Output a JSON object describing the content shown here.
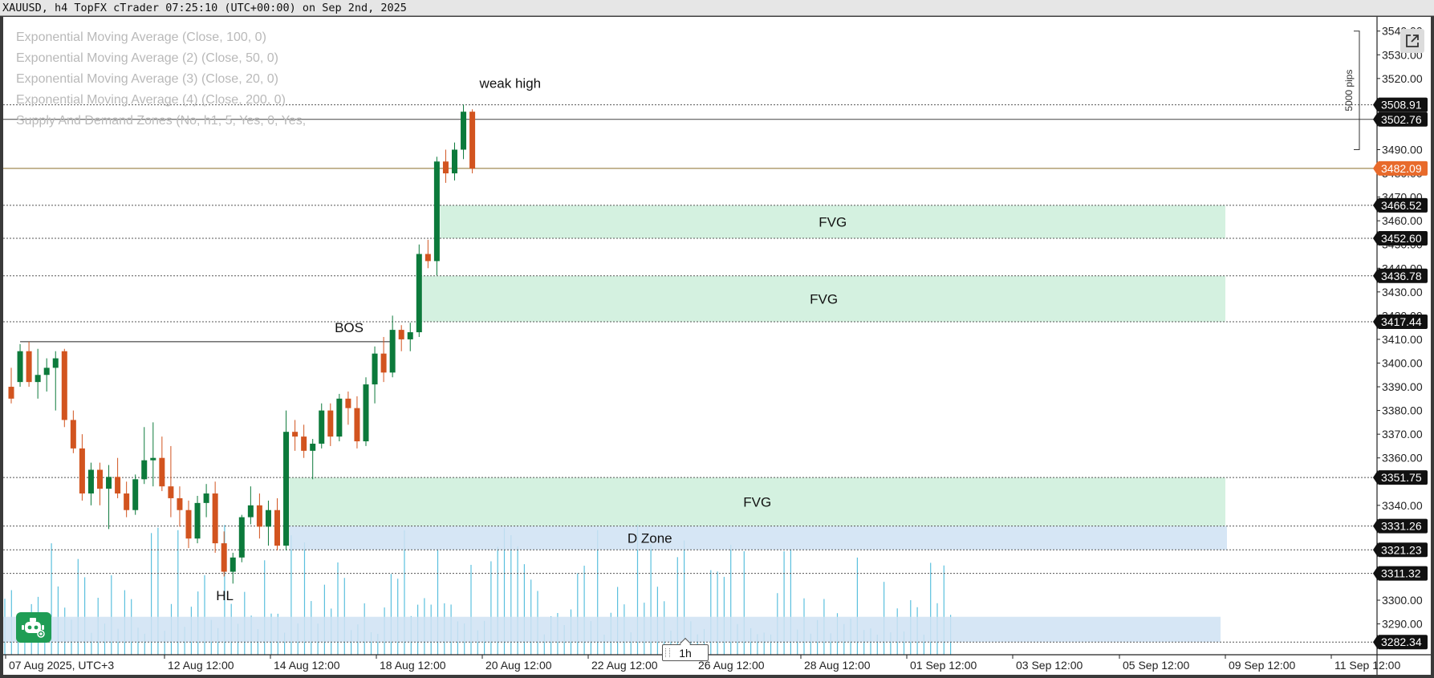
{
  "window": {
    "title": "XAUUSD, h4 TopFX cTrader 07:25:10 (UTC+00:00) on Sep 2nd, 2025"
  },
  "indicators": [
    "Exponential Moving Average (Close, 100, 0)",
    "Exponential Moving Average (2) (Close, 50, 0)",
    "Exponential Moving Average (3) (Close, 20, 0)",
    "Exponential Moving Average (4) (Close, 200, 0)",
    "Supply And Demand Zones (No, h1, 5, Yes, 0, Yes,"
  ],
  "timeframe": "1h",
  "colors": {
    "bull": "#0c7a3b",
    "bear": "#d2541f",
    "fvg_zone": "#cdeedb",
    "demand_zone": "#cfe2f3",
    "current_price_tag": "#e86a2b",
    "volume": "#5bc0de"
  },
  "icons": {
    "popout": "popout-arrow-icon",
    "bot": "robot-icon"
  },
  "chart_data": {
    "type": "candlestick",
    "symbol": "XAUUSD",
    "timeframe": "h4",
    "price_axis": {
      "ticks": [
        3540,
        3530,
        3520,
        3490,
        3480,
        3470,
        3460,
        3450,
        3440,
        3430,
        3420,
        3410,
        3400,
        3390,
        3380,
        3370,
        3360,
        3340,
        3300,
        3290
      ],
      "tick_labels": [
        "3540.00",
        "3530.00",
        "3520.00",
        "3490.00",
        "3480.00",
        "3470.00",
        "3460.00",
        "3450.00",
        "3440.00",
        "3430.00",
        "3420.00",
        "3410.00",
        "3400.00",
        "3390.00",
        "3380.00",
        "3370.00",
        "3360.00",
        "3340.00",
        "3300.00",
        "3290.00"
      ],
      "ylim": [
        3277,
        3546
      ]
    },
    "time_axis": {
      "labels": [
        "07 Aug 2025, UTC+3",
        "12 Aug 12:00",
        "14 Aug 12:00",
        "18 Aug 12:00",
        "20 Aug 12:00",
        "22 Aug 12:00",
        "26 Aug 12:00",
        "28 Aug 12:00",
        "01 Sep 12:00",
        "03 Sep 12:00",
        "05 Sep 12:00",
        "09 Sep 12:00",
        "11 Sep 12:00"
      ]
    },
    "current_price": {
      "value": 3482.09,
      "label": "3482.09"
    },
    "horizontal_levels": [
      {
        "value": 3508.91,
        "label": "3508.91",
        "style": "dotted"
      },
      {
        "value": 3502.76,
        "label": "3502.76",
        "style": "solid"
      },
      {
        "value": 3466.52,
        "label": "3466.52",
        "style": "dotted"
      },
      {
        "value": 3452.6,
        "label": "3452.60",
        "style": "dotted"
      },
      {
        "value": 3436.78,
        "label": "3436.78",
        "style": "dotted"
      },
      {
        "value": 3417.44,
        "label": "3417.44",
        "style": "dotted"
      },
      {
        "value": 3351.75,
        "label": "3351.75",
        "style": "dotted"
      },
      {
        "value": 3331.26,
        "label": "3331.26",
        "style": "dotted"
      },
      {
        "value": 3321.23,
        "label": "3321.23",
        "style": "dotted"
      },
      {
        "value": 3311.32,
        "label": "3311.32",
        "style": "dotted"
      },
      {
        "value": 3282.34,
        "label": "3282.34",
        "style": "dotted"
      }
    ],
    "zones": [
      {
        "label": "FVG",
        "kind": "fvg",
        "top": 3466.52,
        "bottom": 3452.6,
        "start_bar": 48
      },
      {
        "label": "FVG",
        "kind": "fvg",
        "top": 3436.78,
        "bottom": 3417.44,
        "start_bar": 46
      },
      {
        "label": "FVG",
        "kind": "fvg",
        "top": 3351.75,
        "bottom": 3331.26,
        "start_bar": 31
      },
      {
        "label": "D Zone",
        "kind": "demand",
        "top": 3331.26,
        "bottom": 3321.23,
        "start_bar": 31
      },
      {
        "label": "",
        "kind": "demand",
        "top": 3293,
        "bottom": 3282.34,
        "start_bar": 0
      }
    ],
    "annotations": [
      {
        "text": "weak high",
        "bar": 51,
        "price": 3516
      },
      {
        "text": "BOS",
        "bar": 22,
        "price": 3413
      },
      {
        "text": "HL",
        "bar": 24,
        "price": 3300
      }
    ],
    "bos_line": {
      "price": 3409,
      "from_bar": 1,
      "to_bar": 43
    },
    "range_label": "5000 pips",
    "candles": [
      [
        3390,
        3398,
        3383,
        3385
      ],
      [
        3392,
        3408,
        3390,
        3405
      ],
      [
        3405,
        3409,
        3390,
        3392
      ],
      [
        3392,
        3406,
        3385,
        3395
      ],
      [
        3395,
        3402,
        3388,
        3398
      ],
      [
        3398,
        3405,
        3380,
        3402
      ],
      [
        3405,
        3406,
        3373,
        3376
      ],
      [
        3376,
        3380,
        3362,
        3364
      ],
      [
        3364,
        3370,
        3342,
        3345
      ],
      [
        3345,
        3358,
        3340,
        3355
      ],
      [
        3355,
        3358,
        3340,
        3347
      ],
      [
        3347,
        3357,
        3330,
        3352
      ],
      [
        3352,
        3360,
        3343,
        3345
      ],
      [
        3345,
        3350,
        3335,
        3338
      ],
      [
        3338,
        3353,
        3336,
        3351
      ],
      [
        3351,
        3373,
        3349,
        3359
      ],
      [
        3359,
        3375,
        3348,
        3360
      ],
      [
        3360,
        3369,
        3346,
        3348
      ],
      [
        3348,
        3365,
        3335,
        3343
      ],
      [
        3343,
        3348,
        3331,
        3338
      ],
      [
        3338,
        3342,
        3322,
        3326
      ],
      [
        3326,
        3344,
        3324,
        3341
      ],
      [
        3341,
        3349,
        3335,
        3345
      ],
      [
        3345,
        3350,
        3320,
        3324
      ],
      [
        3324,
        3329,
        3310,
        3312
      ],
      [
        3312,
        3320,
        3307,
        3318
      ],
      [
        3318,
        3336,
        3316,
        3335
      ],
      [
        3335,
        3348,
        3332,
        3340
      ],
      [
        3340,
        3345,
        3326,
        3331
      ],
      [
        3331,
        3342,
        3323,
        3338
      ],
      [
        3338,
        3343,
        3321,
        3323
      ],
      [
        3323,
        3380,
        3321,
        3371
      ],
      [
        3371,
        3376,
        3363,
        3369
      ],
      [
        3369,
        3374,
        3360,
        3363
      ],
      [
        3363,
        3368,
        3351,
        3366
      ],
      [
        3366,
        3383,
        3364,
        3380
      ],
      [
        3380,
        3383,
        3365,
        3369
      ],
      [
        3369,
        3387,
        3367,
        3385
      ],
      [
        3385,
        3388,
        3374,
        3381
      ],
      [
        3381,
        3386,
        3364,
        3367
      ],
      [
        3367,
        3394,
        3365,
        3391
      ],
      [
        3391,
        3407,
        3383,
        3404
      ],
      [
        3404,
        3411,
        3392,
        3396
      ],
      [
        3396,
        3420,
        3394,
        3414
      ],
      [
        3414,
        3416,
        3405,
        3410
      ],
      [
        3410,
        3417,
        3405,
        3413
      ],
      [
        3413,
        3450,
        3411,
        3446
      ],
      [
        3446,
        3452,
        3440,
        3443
      ],
      [
        3443,
        3487,
        3437,
        3485
      ],
      [
        3485,
        3490,
        3476,
        3480
      ],
      [
        3480,
        3493,
        3477,
        3490
      ],
      [
        3490,
        3509,
        3486,
        3506
      ],
      [
        3506,
        3507,
        3480,
        3482
      ]
    ],
    "volume_bars_count": 143
  }
}
